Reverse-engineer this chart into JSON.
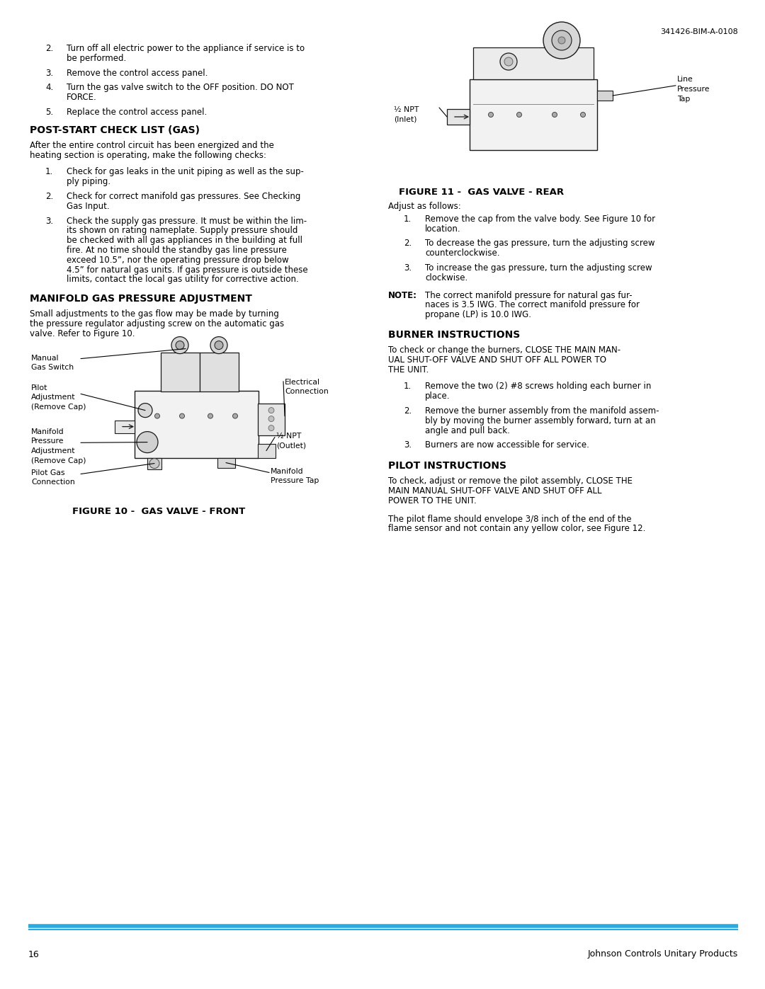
{
  "header_code": "341426-BIM-A-0108",
  "footer_page": "16",
  "footer_company": "Johnson Controls Unitary Products",
  "footer_line_color": "#29abe2",
  "bg_color": "#ffffff",
  "text_color": "#000000",
  "left_col_items": [
    {
      "num": "2.",
      "text": "Turn off all electric power to the appliance if service is to\nbe performed."
    },
    {
      "num": "3.",
      "text": "Remove the control access panel."
    },
    {
      "num": "4.",
      "text": "Turn the gas valve switch to the OFF position. DO NOT\nFORCE."
    },
    {
      "num": "5.",
      "text": "Replace the control access panel."
    }
  ],
  "section1_heading": "POST-START CHECK LIST (GAS)",
  "section1_intro": "After the entire control circuit has been energized and the\nheating section is operating, make the following checks:",
  "section1_items": [
    {
      "num": "1.",
      "text": "Check for gas leaks in the unit piping as well as the sup-\nply piping."
    },
    {
      "num": "2.",
      "text": "Check for correct manifold gas pressures. See Checking\nGas Input."
    },
    {
      "num": "3.",
      "text": "Check the supply gas pressure. It must be within the lim-\nits shown on rating nameplate. Supply pressure should\nbe checked with all gas appliances in the building at full\nfire. At no time should the standby gas line pressure\nexceed 10.5”, nor the operating pressure drop below\n4.5” for natural gas units. If gas pressure is outside these\nlimits, contact the local gas utility for corrective action."
    }
  ],
  "section2_heading": "MANIFOLD GAS PRESSURE ADJUSTMENT",
  "section2_intro": "Small adjustments to the gas flow may be made by turning\nthe pressure regulator adjusting screw on the automatic gas\nvalve. Refer to Figure 10.",
  "fig10_caption": "FIGURE 10 -  GAS VALVE - FRONT",
  "fig11_caption": "FIGURE 11 -  GAS VALVE - REAR",
  "right_col_adjust_intro": "Adjust as follows:",
  "right_col_adjust_items": [
    {
      "num": "1.",
      "text": "Remove the cap from the valve body. See Figure 10 for\nlocation."
    },
    {
      "num": "2.",
      "text": "To decrease the gas pressure, turn the adjusting screw\ncounterclockwise."
    },
    {
      "num": "3.",
      "text": "To increase the gas pressure, turn the adjusting screw\nclockwise."
    }
  ],
  "right_col_note_label": "NOTE:",
  "right_col_note_text": "The correct manifold pressure for natural gas fur-\nnaces is 3.5 IWG. The correct manifold pressure for\npropane (LP) is 10.0 IWG.",
  "section3_heading": "BURNER INSTRUCTIONS",
  "section3_intro": "To check or change the burners, CLOSE THE MAIN MAN-\nUAL SHUT-OFF VALVE AND SHUT OFF ALL POWER TO\nTHE UNIT.",
  "section3_items": [
    {
      "num": "1.",
      "text": "Remove the two (2) #8 screws holding each burner in\nplace."
    },
    {
      "num": "2.",
      "text": "Remove the burner assembly from the manifold assem-\nbly by moving the burner assembly forward, turn at an\nangle and pull back."
    },
    {
      "num": "3.",
      "text": "Burners are now accessible for service."
    }
  ],
  "section4_heading": "PILOT INSTRUCTIONS",
  "section4_intro": "To check, adjust or remove the pilot assembly, CLOSE THE\nMAIN MANUAL SHUT-OFF VALVE AND SHUT OFF ALL\nPOWER TO THE UNIT.",
  "section4_para2": "The pilot flame should envelope 3/8 inch of the end of the\nflame sensor and not contain any yellow color, see Figure 12."
}
